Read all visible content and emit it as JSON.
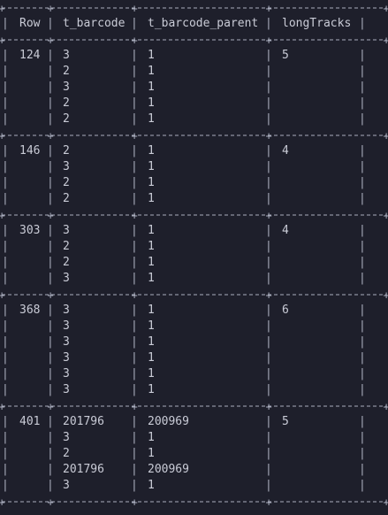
{
  "table": {
    "columns": [
      "Row",
      "t_barcode",
      "t_barcode_parent",
      "longTracks"
    ],
    "groups": [
      {
        "row": "124",
        "longTracks": "5",
        "rows": [
          {
            "t_barcode": "3",
            "t_barcode_parent": "1"
          },
          {
            "t_barcode": "2",
            "t_barcode_parent": "1"
          },
          {
            "t_barcode": "3",
            "t_barcode_parent": "1"
          },
          {
            "t_barcode": "2",
            "t_barcode_parent": "1"
          },
          {
            "t_barcode": "2",
            "t_barcode_parent": "1"
          }
        ]
      },
      {
        "row": "146",
        "longTracks": "4",
        "rows": [
          {
            "t_barcode": "2",
            "t_barcode_parent": "1"
          },
          {
            "t_barcode": "3",
            "t_barcode_parent": "1"
          },
          {
            "t_barcode": "2",
            "t_barcode_parent": "1"
          },
          {
            "t_barcode": "2",
            "t_barcode_parent": "1"
          }
        ]
      },
      {
        "row": "303",
        "longTracks": "4",
        "rows": [
          {
            "t_barcode": "3",
            "t_barcode_parent": "1"
          },
          {
            "t_barcode": "2",
            "t_barcode_parent": "1"
          },
          {
            "t_barcode": "2",
            "t_barcode_parent": "1"
          },
          {
            "t_barcode": "3",
            "t_barcode_parent": "1"
          }
        ]
      },
      {
        "row": "368",
        "longTracks": "6",
        "rows": [
          {
            "t_barcode": "3",
            "t_barcode_parent": "1"
          },
          {
            "t_barcode": "3",
            "t_barcode_parent": "1"
          },
          {
            "t_barcode": "3",
            "t_barcode_parent": "1"
          },
          {
            "t_barcode": "3",
            "t_barcode_parent": "1"
          },
          {
            "t_barcode": "3",
            "t_barcode_parent": "1"
          },
          {
            "t_barcode": "3",
            "t_barcode_parent": "1"
          }
        ]
      },
      {
        "row": "401",
        "longTracks": "5",
        "rows": [
          {
            "t_barcode": "201796",
            "t_barcode_parent": "200969"
          },
          {
            "t_barcode": "3",
            "t_barcode_parent": "1"
          },
          {
            "t_barcode": "2",
            "t_barcode_parent": "1"
          },
          {
            "t_barcode": "201796",
            "t_barcode_parent": "200969"
          },
          {
            "t_barcode": "3",
            "t_barcode_parent": "1"
          }
        ]
      }
    ]
  },
  "colors": {
    "background": "#1e1f2b",
    "text": "#c9cbd6",
    "border": "#a9adbd"
  }
}
